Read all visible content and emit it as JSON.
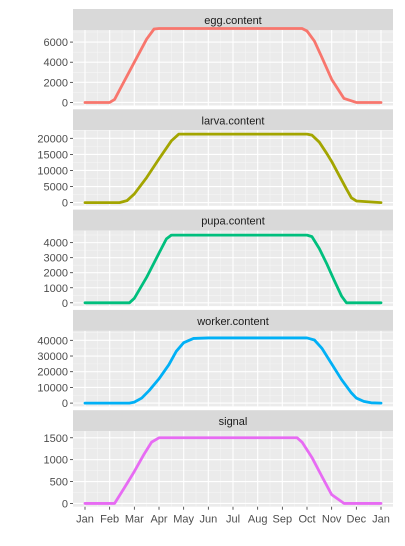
{
  "chart_data": {
    "type": "line",
    "x_ticks": [
      "Jan",
      "Feb",
      "Mar",
      "Apr",
      "May",
      "Jun",
      "Jul",
      "Aug",
      "Sep",
      "Oct",
      "Nov",
      "Dec",
      "Jan"
    ],
    "x_unit": "month",
    "grid": true,
    "legend": "none",
    "panels": [
      {
        "name": "egg.content",
        "color": "#F8766D",
        "ylim": [
          -300,
          7200
        ],
        "y_ticks": [
          0,
          2000,
          4000,
          6000
        ],
        "x": [
          0,
          0.5,
          1,
          1.2,
          1.5,
          2,
          2.5,
          2.8,
          3,
          3.5,
          4,
          5,
          6,
          7,
          8,
          8.8,
          9,
          9.3,
          9.6,
          10,
          10.5,
          11,
          12
        ],
        "values": [
          0,
          0,
          0,
          300,
          1700,
          4000,
          6300,
          7300,
          7350,
          7350,
          7350,
          7350,
          7350,
          7350,
          7350,
          7350,
          7100,
          6100,
          4500,
          2300,
          400,
          0,
          0
        ]
      },
      {
        "name": "larva.content",
        "color": "#A3A500",
        "ylim": [
          -1000,
          22500
        ],
        "y_ticks": [
          0,
          5000,
          10000,
          15000,
          20000
        ],
        "x": [
          0,
          1,
          1.4,
          1.7,
          2,
          2.5,
          3,
          3.5,
          3.8,
          4,
          5,
          6,
          7,
          8,
          9,
          9.2,
          9.5,
          9.8,
          10,
          10.3,
          10.6,
          10.8,
          11,
          12
        ],
        "values": [
          0,
          0,
          0,
          600,
          2700,
          7800,
          13600,
          19200,
          21300,
          21300,
          21300,
          21300,
          21300,
          21300,
          21300,
          21000,
          18800,
          15300,
          12800,
          8500,
          4200,
          1500,
          500,
          0
        ]
      },
      {
        "name": "pupa.content",
        "color": "#00BF7D",
        "ylim": [
          -220,
          4800
        ],
        "y_ticks": [
          0,
          1000,
          2000,
          3000,
          4000
        ],
        "x": [
          0,
          1,
          1.6,
          1.8,
          2,
          2.5,
          3,
          3.3,
          3.5,
          4,
          5,
          6,
          7,
          8,
          9,
          9.2,
          9.5,
          9.8,
          10.1,
          10.4,
          10.6,
          11,
          12
        ],
        "values": [
          0,
          0,
          0,
          0,
          300,
          1700,
          3300,
          4250,
          4500,
          4500,
          4500,
          4500,
          4500,
          4500,
          4500,
          4400,
          3600,
          2600,
          1500,
          450,
          0,
          0,
          0
        ]
      },
      {
        "name": "worker.content",
        "color": "#00B0F6",
        "ylim": [
          -2100,
          46000
        ],
        "y_ticks": [
          0,
          10000,
          20000,
          30000,
          40000
        ],
        "x": [
          0,
          1,
          1.8,
          2,
          2.3,
          2.6,
          3,
          3.4,
          3.7,
          4,
          4.4,
          5,
          6,
          7,
          8,
          9,
          9.3,
          9.6,
          10,
          10.4,
          10.8,
          11,
          11.3,
          11.6,
          12
        ],
        "values": [
          0,
          0,
          0,
          600,
          3200,
          8000,
          15500,
          24500,
          33000,
          38500,
          41200,
          41500,
          41500,
          41500,
          41500,
          41500,
          40200,
          35000,
          25000,
          15000,
          6500,
          3200,
          1100,
          200,
          0
        ]
      },
      {
        "name": "signal",
        "color": "#E76BF3",
        "ylim": [
          -75,
          1650
        ],
        "y_ticks": [
          0,
          500,
          1000,
          1500
        ],
        "x": [
          0,
          1,
          1.2,
          1.6,
          2,
          2.4,
          2.7,
          3,
          4,
          5,
          6,
          7,
          8,
          8.6,
          8.8,
          9.2,
          9.6,
          10,
          10.5,
          11,
          12
        ],
        "values": [
          0,
          0,
          0,
          360,
          730,
          1130,
          1400,
          1500,
          1500,
          1500,
          1500,
          1500,
          1500,
          1500,
          1400,
          1050,
          620,
          200,
          0,
          0,
          0
        ]
      }
    ]
  }
}
